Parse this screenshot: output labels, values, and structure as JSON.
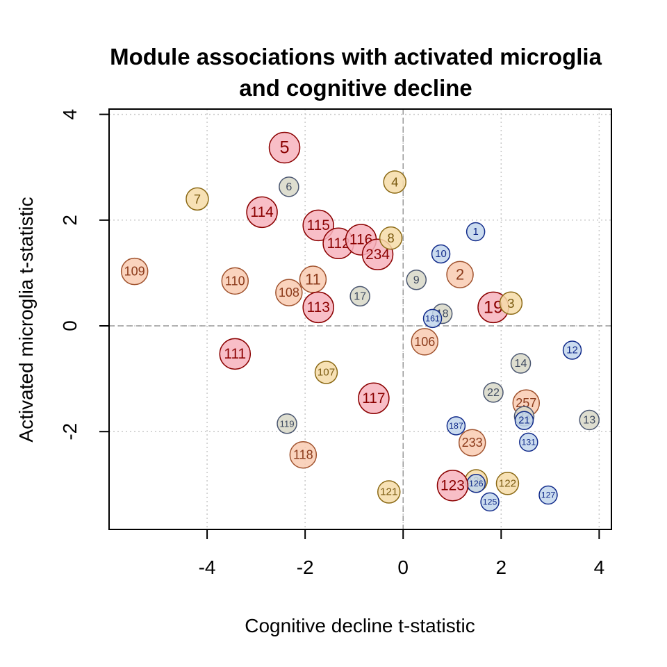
{
  "chart_data": {
    "type": "scatter",
    "title": [
      "Module associations with activated microglia",
      "and cognitive decline"
    ],
    "xlabel": "Cognitive decline t-statistic",
    "ylabel": "Activated microglia t-statistic",
    "xlim": [
      -6,
      4.25
    ],
    "ylim": [
      -3.85,
      4.1
    ],
    "xticks": [
      -4,
      -2,
      0,
      2,
      4
    ],
    "yticks": [
      -2,
      0,
      2,
      4
    ],
    "tick_labels_x": [
      "-4",
      "-2",
      "0",
      "2",
      "4"
    ],
    "tick_labels_y": [
      "-2",
      "0",
      "2",
      "4"
    ],
    "grid": true,
    "reference_lines": {
      "x": 0,
      "y": 0
    },
    "points": [
      {
        "label": "5",
        "x": -2.42,
        "y": 3.37,
        "color": "red"
      },
      {
        "label": "6",
        "x": -2.33,
        "y": 2.63,
        "color": "grey"
      },
      {
        "label": "7",
        "x": -4.2,
        "y": 2.4,
        "color": "yellow"
      },
      {
        "label": "114",
        "x": -2.88,
        "y": 2.15,
        "color": "red"
      },
      {
        "label": "115",
        "x": -1.73,
        "y": 1.9,
        "color": "red"
      },
      {
        "label": "112",
        "x": -1.32,
        "y": 1.56,
        "color": "red"
      },
      {
        "label": "116",
        "x": -0.86,
        "y": 1.63,
        "color": "red"
      },
      {
        "label": "234",
        "x": -0.52,
        "y": 1.35,
        "color": "red"
      },
      {
        "label": "4",
        "x": -0.17,
        "y": 2.72,
        "color": "yellow"
      },
      {
        "label": "8",
        "x": -0.25,
        "y": 1.66,
        "color": "yellow"
      },
      {
        "label": "1",
        "x": 1.48,
        "y": 1.78,
        "color": "blue"
      },
      {
        "label": "10",
        "x": 0.77,
        "y": 1.36,
        "color": "blue"
      },
      {
        "label": "109",
        "x": -5.48,
        "y": 1.03,
        "color": "orange"
      },
      {
        "label": "110",
        "x": -3.43,
        "y": 0.85,
        "color": "orange"
      },
      {
        "label": "108",
        "x": -2.33,
        "y": 0.63,
        "color": "orange"
      },
      {
        "label": "11",
        "x": -1.84,
        "y": 0.88,
        "color": "orange"
      },
      {
        "label": "113",
        "x": -1.73,
        "y": 0.35,
        "color": "red"
      },
      {
        "label": "17",
        "x": -0.88,
        "y": 0.56,
        "color": "grey"
      },
      {
        "label": "9",
        "x": 0.27,
        "y": 0.87,
        "color": "grey"
      },
      {
        "label": "2",
        "x": 1.16,
        "y": 0.97,
        "color": "orange"
      },
      {
        "label": "19",
        "x": 1.84,
        "y": 0.35,
        "color": "red"
      },
      {
        "label": "3",
        "x": 2.2,
        "y": 0.43,
        "color": "yellow"
      },
      {
        "label": "18",
        "x": 0.8,
        "y": 0.23,
        "color": "grey"
      },
      {
        "label": "161",
        "x": 0.6,
        "y": 0.14,
        "color": "blue"
      },
      {
        "label": "106",
        "x": 0.44,
        "y": -0.3,
        "color": "orange"
      },
      {
        "label": "111",
        "x": -3.43,
        "y": -0.53,
        "color": "red"
      },
      {
        "label": "12",
        "x": 3.45,
        "y": -0.46,
        "color": "blue"
      },
      {
        "label": "14",
        "x": 2.4,
        "y": -0.71,
        "color": "grey"
      },
      {
        "label": "107",
        "x": -1.57,
        "y": -0.88,
        "color": "yellow"
      },
      {
        "label": "117",
        "x": -0.6,
        "y": -1.37,
        "color": "red"
      },
      {
        "label": "22",
        "x": 1.84,
        "y": -1.26,
        "color": "grey"
      },
      {
        "label": "257",
        "x": 2.51,
        "y": -1.46,
        "color": "orange"
      },
      {
        "label": "23",
        "x": 2.47,
        "y": -1.71,
        "color": "grey"
      },
      {
        "label": "21",
        "x": 2.47,
        "y": -1.79,
        "color": "blue"
      },
      {
        "label": "13",
        "x": 3.8,
        "y": -1.78,
        "color": "grey"
      },
      {
        "label": "119",
        "x": -2.37,
        "y": -1.85,
        "color": "grey"
      },
      {
        "label": "187",
        "x": 1.08,
        "y": -1.89,
        "color": "blue"
      },
      {
        "label": "131",
        "x": 2.56,
        "y": -2.2,
        "color": "blue"
      },
      {
        "label": "233",
        "x": 1.41,
        "y": -2.21,
        "color": "orange"
      },
      {
        "label": "118",
        "x": -2.04,
        "y": -2.44,
        "color": "orange"
      },
      {
        "label": "120",
        "x": 1.49,
        "y": -2.93,
        "color": "yellow"
      },
      {
        "label": "126",
        "x": 1.49,
        "y": -2.98,
        "color": "blue"
      },
      {
        "label": "122",
        "x": 2.13,
        "y": -2.98,
        "color": "yellow"
      },
      {
        "label": "123",
        "x": 1.01,
        "y": -3.02,
        "color": "red"
      },
      {
        "label": "121",
        "x": -0.29,
        "y": -3.14,
        "color": "yellow"
      },
      {
        "label": "125",
        "x": 1.77,
        "y": -3.33,
        "color": "blue"
      },
      {
        "label": "127",
        "x": 2.96,
        "y": -3.2,
        "color": "blue"
      }
    ]
  }
}
